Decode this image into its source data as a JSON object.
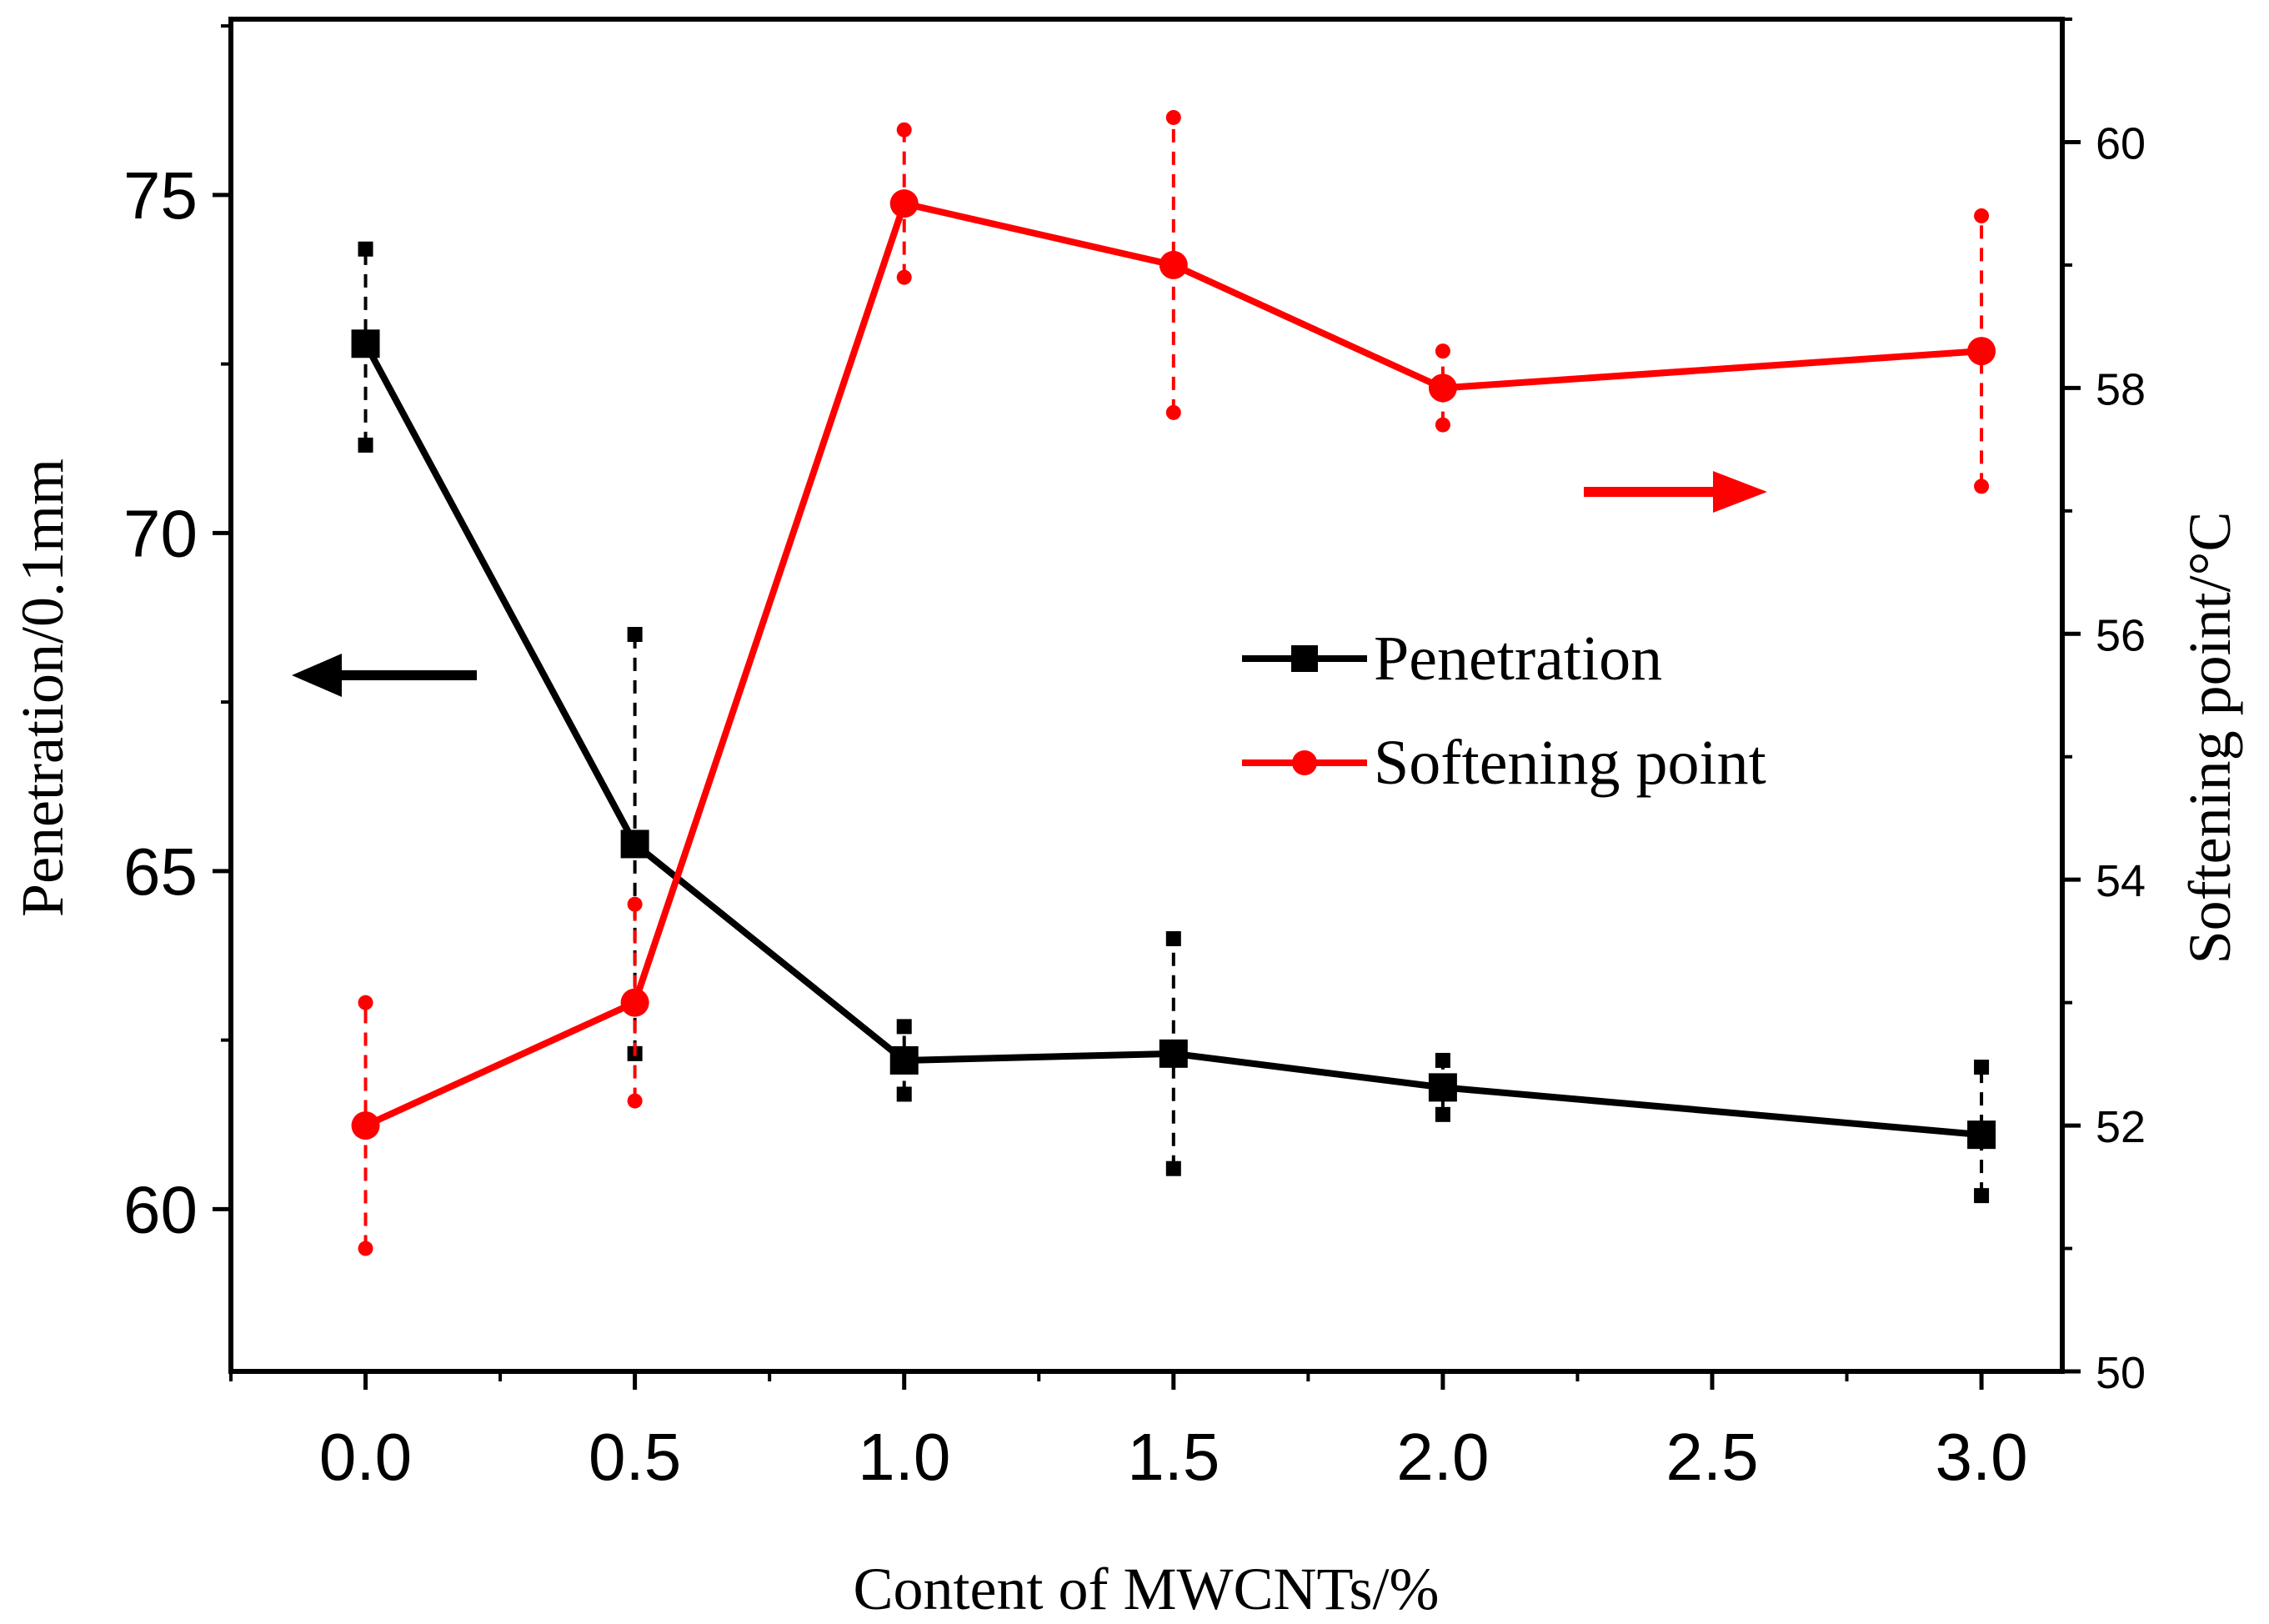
{
  "chart_data": {
    "type": "line",
    "xlabel": "Content of MWCNTs/%",
    "ylabel_left": "Penetration/0.1mm",
    "ylabel_right": "Softening point/°C",
    "x_axis": {
      "min": -0.25,
      "max": 3.15,
      "ticks": [
        0.0,
        0.5,
        1.0,
        1.5,
        2.0,
        2.5,
        3.0
      ],
      "tick_labels": [
        "0.0",
        "0.5",
        "1.0",
        "1.5",
        "2.0",
        "2.5",
        "3.0"
      ]
    },
    "y_left": {
      "min": 57.6,
      "max": 77.6,
      "ticks": [
        60,
        65,
        70,
        75
      ],
      "tick_labels": [
        "60",
        "65",
        "70",
        "75"
      ]
    },
    "y_right": {
      "min": 50,
      "max": 61,
      "ticks": [
        50,
        52,
        54,
        56,
        58,
        60
      ],
      "tick_labels": [
        "50",
        "52",
        "54",
        "56",
        "58",
        "60"
      ]
    },
    "series": [
      {
        "name": "Penetration",
        "axis": "left",
        "color": "#000000",
        "marker": "square",
        "x": [
          0.0,
          0.5,
          1.0,
          1.5,
          2.0,
          3.0
        ],
        "y": [
          72.8,
          65.4,
          62.2,
          62.3,
          61.8,
          61.1
        ],
        "err_low": [
          71.3,
          62.3,
          61.7,
          60.6,
          61.4,
          60.2
        ],
        "err_high": [
          74.2,
          68.5,
          62.7,
          64.0,
          62.2,
          62.1
        ]
      },
      {
        "name": "Softening point",
        "axis": "right",
        "color": "#ff0000",
        "marker": "circle",
        "x": [
          0.0,
          0.5,
          1.0,
          1.5,
          2.0,
          3.0
        ],
        "y": [
          52.0,
          53.0,
          59.5,
          59.0,
          58.0,
          58.3
        ],
        "err_low": [
          51.0,
          52.2,
          58.9,
          57.8,
          57.7,
          57.2
        ],
        "err_high": [
          53.0,
          53.8,
          60.1,
          60.2,
          58.3,
          59.4
        ]
      }
    ],
    "legend": {
      "placement": "center-right",
      "entries": [
        "Penetration",
        "Softening point"
      ]
    },
    "annotations": [
      {
        "type": "arrow",
        "points_to": "left",
        "color": "#000000",
        "meaning": "Penetration uses left axis"
      },
      {
        "type": "arrow",
        "points_to": "right",
        "color": "#ff0000",
        "meaning": "Softening point uses right axis"
      }
    ],
    "grid": false
  }
}
